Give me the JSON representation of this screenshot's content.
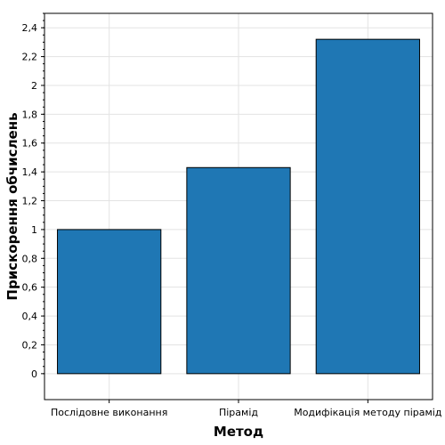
{
  "chart_data": {
    "type": "bar",
    "title": "",
    "xlabel": "Метод",
    "ylabel": "Прискорення обчислень",
    "categories": [
      "Послідовне виконання",
      "Пірамід",
      "Модифікація методу пірамід"
    ],
    "values": [
      1.0,
      1.43,
      2.32
    ],
    "ylim": [
      -0.18,
      2.5
    ],
    "yticks": [
      0,
      0.2,
      0.4,
      0.6,
      0.8,
      1,
      1.2,
      1.4,
      1.6,
      1.8,
      2,
      2.2,
      2.4
    ],
    "ytick_labels": [
      "0",
      "0,2",
      "0,4",
      "0,6",
      "0,8",
      "1",
      "1,2",
      "1,4",
      "1,6",
      "1,8",
      "2",
      "2,2",
      "2,4"
    ],
    "bar_color": "#1f77b4",
    "grid": true
  }
}
